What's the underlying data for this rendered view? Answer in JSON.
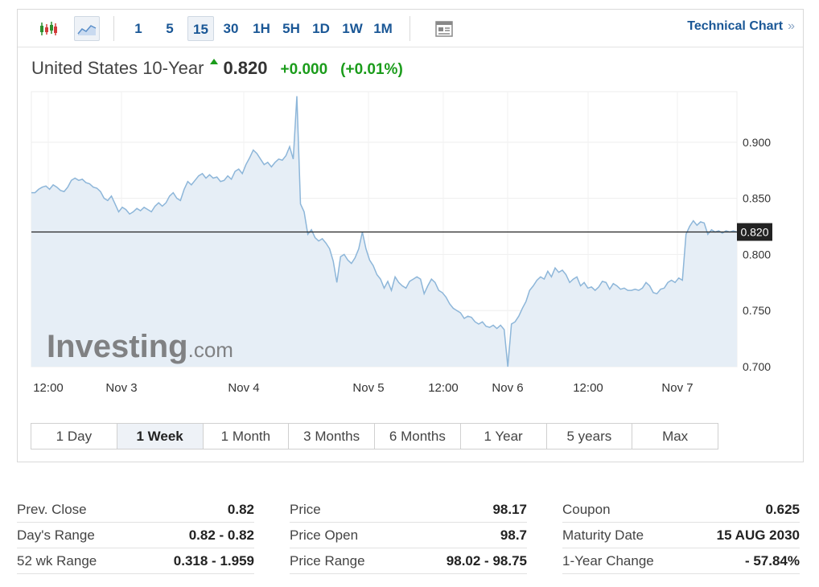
{
  "toolbar": {
    "intervals": [
      "1",
      "5",
      "15",
      "30",
      "1H",
      "5H",
      "1D",
      "1W",
      "1M"
    ],
    "active_interval": "15",
    "technical_chart_label": "Technical Chart",
    "technical_chart_chevron": "»",
    "icons": [
      "candlestick-icon",
      "area-chart-icon",
      "news-icon"
    ]
  },
  "title": {
    "name": "United States 10-Year",
    "price": "0.820",
    "change": "+0.000",
    "change_pct": "(+0.01%)",
    "direction": "up"
  },
  "chart_data": {
    "type": "area",
    "title": "United States 10-Year",
    "ylim": [
      0.7,
      0.945
    ],
    "yticks": [
      "0.900",
      "0.850",
      "0.800",
      "0.750",
      "0.700"
    ],
    "xticks": [
      "12:00",
      "Nov 3",
      "Nov 4",
      "Nov 5",
      "12:00",
      "Nov 6",
      "12:00",
      "Nov 7"
    ],
    "last_value": 0.82,
    "last_value_label": "0.820",
    "grid": true,
    "watermark": "Investing.com",
    "series": [
      {
        "values": [
          0.855,
          0.855,
          0.858,
          0.86,
          0.861,
          0.858,
          0.862,
          0.86,
          0.857,
          0.856,
          0.86,
          0.866,
          0.868,
          0.866,
          0.867,
          0.864,
          0.863,
          0.86,
          0.859,
          0.856,
          0.85,
          0.848,
          0.852,
          0.845,
          0.838,
          0.842,
          0.84,
          0.836,
          0.838,
          0.841,
          0.839,
          0.842,
          0.84,
          0.838,
          0.843,
          0.846,
          0.843,
          0.846,
          0.852,
          0.855,
          0.85,
          0.848,
          0.858,
          0.865,
          0.862,
          0.866,
          0.87,
          0.872,
          0.868,
          0.871,
          0.868,
          0.869,
          0.865,
          0.866,
          0.87,
          0.867,
          0.874,
          0.876,
          0.872,
          0.88,
          0.886,
          0.893,
          0.89,
          0.885,
          0.88,
          0.882,
          0.878,
          0.882,
          0.885,
          0.884,
          0.888,
          0.896,
          0.885,
          0.941,
          0.845,
          0.838,
          0.818,
          0.822,
          0.815,
          0.812,
          0.814,
          0.81,
          0.805,
          0.794,
          0.775,
          0.798,
          0.8,
          0.795,
          0.792,
          0.797,
          0.805,
          0.82,
          0.805,
          0.795,
          0.79,
          0.782,
          0.778,
          0.77,
          0.776,
          0.768,
          0.78,
          0.775,
          0.772,
          0.77,
          0.776,
          0.778,
          0.78,
          0.778,
          0.765,
          0.772,
          0.778,
          0.775,
          0.768,
          0.766,
          0.762,
          0.756,
          0.752,
          0.75,
          0.748,
          0.743,
          0.745,
          0.744,
          0.74,
          0.738,
          0.74,
          0.736,
          0.735,
          0.737,
          0.734,
          0.737,
          0.733,
          0.7,
          0.738,
          0.74,
          0.745,
          0.752,
          0.758,
          0.768,
          0.772,
          0.777,
          0.78,
          0.778,
          0.785,
          0.78,
          0.788,
          0.784,
          0.786,
          0.782,
          0.775,
          0.778,
          0.78,
          0.772,
          0.775,
          0.77,
          0.771,
          0.768,
          0.771,
          0.776,
          0.775,
          0.769,
          0.774,
          0.772,
          0.769,
          0.77,
          0.768,
          0.768,
          0.769,
          0.768,
          0.77,
          0.775,
          0.772,
          0.766,
          0.765,
          0.769,
          0.77,
          0.775,
          0.777,
          0.775,
          0.779,
          0.777,
          0.818,
          0.825,
          0.83,
          0.826,
          0.829,
          0.828,
          0.818,
          0.822,
          0.82,
          0.821,
          0.819,
          0.821,
          0.82,
          0.821,
          0.82
        ]
      }
    ]
  },
  "ranges": {
    "items": [
      "1 Day",
      "1 Week",
      "1 Month",
      "3 Months",
      "6 Months",
      "1 Year",
      "5 years",
      "Max"
    ],
    "active": "1 Week"
  },
  "stats": {
    "col1": [
      {
        "label": "Prev. Close",
        "value": "0.82"
      },
      {
        "label": "Day's Range",
        "value": "0.82 - 0.82"
      },
      {
        "label": "52 wk Range",
        "value": "0.318 - 1.959"
      }
    ],
    "col2": [
      {
        "label": "Price",
        "value": "98.17"
      },
      {
        "label": "Price Open",
        "value": "98.7"
      },
      {
        "label": "Price Range",
        "value": "98.02 - 98.75"
      }
    ],
    "col3": [
      {
        "label": "Coupon",
        "value": "0.625"
      },
      {
        "label": "Maturity Date",
        "value": "15 AUG 2030"
      },
      {
        "label": "1-Year Change",
        "value": "- 57.84%"
      }
    ]
  },
  "colors": {
    "accent": "#1a5796",
    "up": "#1b9c1b",
    "line": "#8db6d9",
    "fill": "#e6eef6"
  }
}
